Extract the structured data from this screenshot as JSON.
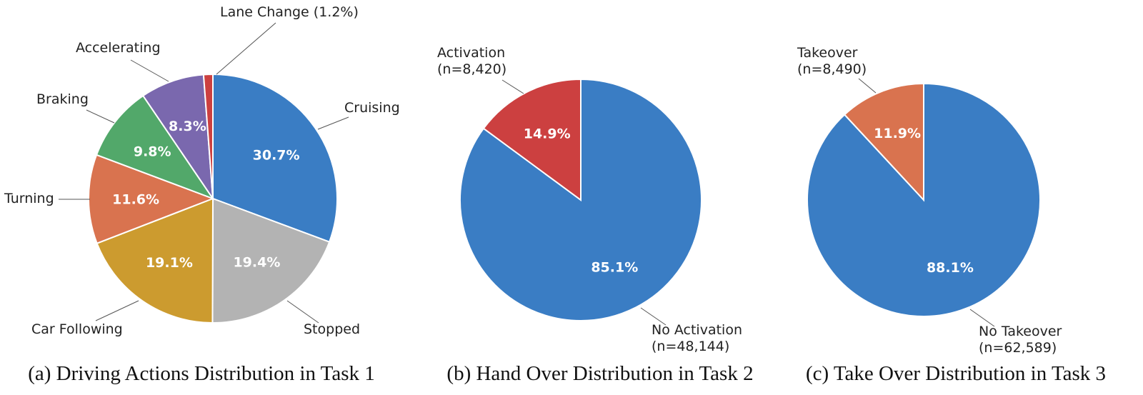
{
  "chart_data": [
    {
      "type": "pie",
      "caption": "(a) Driving Actions Distribution in Task 1",
      "slices": [
        {
          "label": "Cruising",
          "value": 30.7,
          "pct_label": "30.7%",
          "color": "#3a7dc4"
        },
        {
          "label": "Stopped",
          "value": 19.4,
          "pct_label": "19.4%",
          "color": "#b3b3b3"
        },
        {
          "label": "Car Following",
          "value": 19.1,
          "pct_label": "19.1%",
          "color": "#cc9b2f"
        },
        {
          "label": "Turning",
          "value": 11.6,
          "pct_label": "11.6%",
          "color": "#d9734f"
        },
        {
          "label": "Braking",
          "value": 9.8,
          "pct_label": "9.8%",
          "color": "#52a86a"
        },
        {
          "label": "Accelerating",
          "value": 8.3,
          "pct_label": "8.3%",
          "color": "#7a68ae"
        },
        {
          "label": "Lane Change (1.2%)",
          "value": 1.2,
          "pct_label": "",
          "color": "#cc4040"
        }
      ]
    },
    {
      "type": "pie",
      "caption": "(b) Hand Over Distribution in Task 2",
      "slices": [
        {
          "label": "No Activation",
          "count_label": "(n=48,144)",
          "value": 85.1,
          "pct_label": "85.1%",
          "color": "#3a7dc4"
        },
        {
          "label": "Activation",
          "count_label": "(n=8,420)",
          "value": 14.9,
          "pct_label": "14.9%",
          "color": "#cc4040"
        }
      ]
    },
    {
      "type": "pie",
      "caption": "(c) Take Over Distribution in Task 3",
      "slices": [
        {
          "label": "No Takeover",
          "count_label": "(n=62,589)",
          "value": 88.1,
          "pct_label": "88.1%",
          "color": "#3a7dc4"
        },
        {
          "label": "Takeover",
          "count_label": "(n=8,490)",
          "value": 11.9,
          "pct_label": "11.9%",
          "color": "#d9734f"
        }
      ]
    }
  ]
}
